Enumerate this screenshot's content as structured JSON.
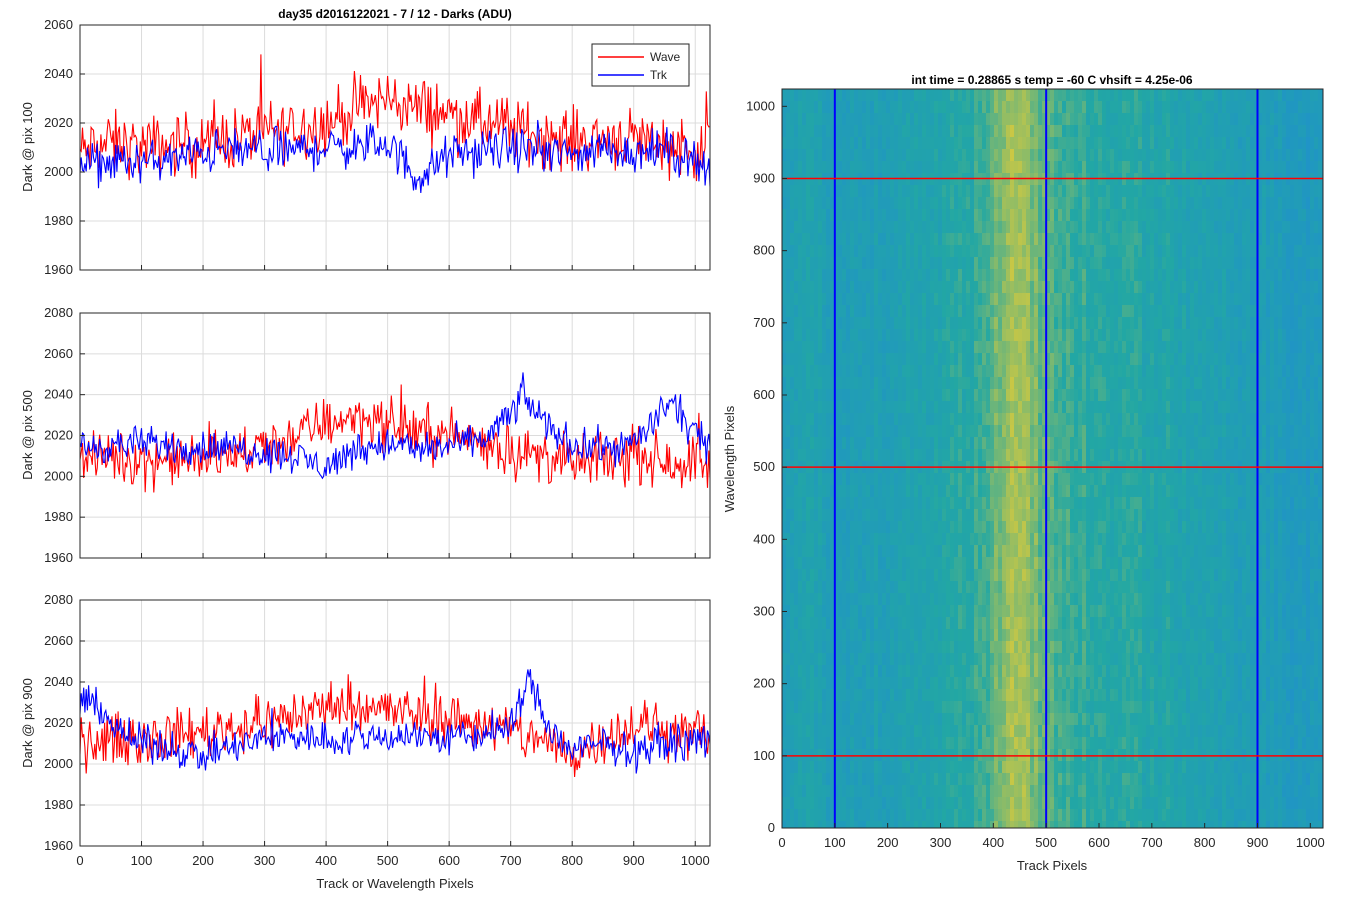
{
  "figure": {
    "title": "day35 d2016122021 - 7 / 12 - Darks (ADU)"
  },
  "colors": {
    "wave": "#ff0000",
    "trk": "#0000ff",
    "grid": "#dcdcdc",
    "axis": "#262626",
    "heat_low": "#1f8fcf",
    "heat_mid": "#22a7a4",
    "heat_high": "#dccb3a"
  },
  "chart_data": [
    {
      "type": "line",
      "title": "day35 d2016122021 - 7 / 12 - Darks (ADU)",
      "xlabel": "",
      "ylabel": "Dark @ pix 100",
      "xlim": [
        0,
        1024
      ],
      "ylim": [
        1960,
        2060
      ],
      "xticks": [
        0,
        100,
        200,
        300,
        400,
        500,
        600,
        700,
        800,
        900,
        1000
      ],
      "yticks": [
        1960,
        1980,
        2000,
        2020,
        2040,
        2060
      ],
      "grid": true,
      "legend": "top-right",
      "series": [
        {
          "name": "Wave",
          "color": "#ff0000",
          "x": [
            0,
            50,
            100,
            150,
            200,
            250,
            300,
            350,
            400,
            450,
            500,
            550,
            600,
            650,
            700,
            750,
            800,
            850,
            900,
            950,
            1024
          ],
          "y": [
            2008,
            2012,
            2010,
            2011,
            2012,
            2014,
            2016,
            2018,
            2020,
            2026,
            2030,
            2026,
            2024,
            2020,
            2018,
            2015,
            2013,
            2014,
            2014,
            2012,
            2008
          ],
          "noise": 9
        },
        {
          "name": "Trk",
          "color": "#0000ff",
          "x": [
            0,
            50,
            100,
            150,
            200,
            250,
            300,
            350,
            400,
            450,
            500,
            550,
            600,
            650,
            700,
            750,
            800,
            850,
            900,
            950,
            1024
          ],
          "y": [
            2003,
            2004,
            2004,
            2005,
            2008,
            2009,
            2008,
            2009,
            2010,
            2010,
            2012,
            1997,
            2007,
            2008,
            2010,
            2008,
            2007,
            2010,
            2008,
            2009,
            2003
          ],
          "noise": 6
        }
      ]
    },
    {
      "type": "line",
      "xlabel": "",
      "ylabel": "Dark @ pix 500",
      "xlim": [
        0,
        1024
      ],
      "ylim": [
        1960,
        2080
      ],
      "xticks": [
        0,
        100,
        200,
        300,
        400,
        500,
        600,
        700,
        800,
        900,
        1000
      ],
      "yticks": [
        1960,
        1980,
        2000,
        2020,
        2040,
        2060,
        2080
      ],
      "grid": true,
      "series": [
        {
          "name": "Wave",
          "color": "#ff0000",
          "x": [
            0,
            50,
            100,
            150,
            200,
            250,
            300,
            350,
            400,
            450,
            500,
            550,
            600,
            650,
            700,
            750,
            800,
            850,
            900,
            950,
            1024
          ],
          "y": [
            2008,
            2010,
            2008,
            2008,
            2009,
            2010,
            2014,
            2020,
            2026,
            2030,
            2025,
            2022,
            2020,
            2018,
            2012,
            2010,
            2006,
            2008,
            2010,
            2008,
            2006
          ],
          "noise": 9
        },
        {
          "name": "Trk",
          "color": "#0000ff",
          "x": [
            0,
            50,
            100,
            150,
            200,
            250,
            300,
            350,
            400,
            450,
            500,
            550,
            600,
            650,
            700,
            720,
            750,
            800,
            850,
            900,
            960,
            1024
          ],
          "y": [
            2014,
            2015,
            2016,
            2015,
            2014,
            2014,
            2012,
            2010,
            2004,
            2014,
            2016,
            2013,
            2015,
            2017,
            2030,
            2040,
            2028,
            2015,
            2014,
            2016,
            2036,
            2012
          ],
          "noise": 6
        }
      ]
    },
    {
      "type": "line",
      "xlabel": "Track or Wavelength Pixels",
      "ylabel": "Dark @ pix 900",
      "xlim": [
        0,
        1024
      ],
      "ylim": [
        1960,
        2080
      ],
      "xticks": [
        0,
        100,
        200,
        300,
        400,
        500,
        600,
        700,
        800,
        900,
        1000
      ],
      "yticks": [
        1960,
        1980,
        2000,
        2020,
        2040,
        2060,
        2080
      ],
      "grid": true,
      "series": [
        {
          "name": "Wave",
          "color": "#ff0000",
          "x": [
            0,
            50,
            100,
            150,
            200,
            250,
            300,
            350,
            400,
            450,
            500,
            550,
            600,
            650,
            700,
            750,
            800,
            850,
            900,
            950,
            1024
          ],
          "y": [
            2010,
            2012,
            2012,
            2014,
            2016,
            2018,
            2020,
            2024,
            2028,
            2030,
            2026,
            2024,
            2022,
            2020,
            2016,
            2012,
            2004,
            2014,
            2018,
            2018,
            2014
          ],
          "noise": 9
        },
        {
          "name": "Trk",
          "color": "#0000ff",
          "x": [
            0,
            30,
            60,
            100,
            150,
            200,
            250,
            300,
            350,
            400,
            450,
            500,
            550,
            600,
            650,
            700,
            730,
            760,
            800,
            850,
            900,
            950,
            1024
          ],
          "y": [
            2028,
            2030,
            2016,
            2010,
            2008,
            2004,
            2008,
            2012,
            2014,
            2012,
            2012,
            2014,
            2014,
            2012,
            2014,
            2018,
            2042,
            2018,
            2006,
            2010,
            2006,
            2010,
            2012
          ],
          "noise": 6
        }
      ]
    },
    {
      "type": "heatmap",
      "title": "int time = 0.28865 s    temp = -60 C    vhsift = 4.25e-06",
      "xlabel": "Track Pixels",
      "ylabel": "Wavelength Pixels",
      "xlim": [
        0,
        1024
      ],
      "ylim": [
        0,
        1024
      ],
      "xticks": [
        0,
        100,
        200,
        300,
        400,
        500,
        600,
        700,
        800,
        900,
        1000
      ],
      "yticks": [
        0,
        100,
        200,
        300,
        400,
        500,
        600,
        700,
        800,
        900,
        1000
      ],
      "grid": false,
      "column_profile": {
        "x": [
          0,
          60,
          100,
          200,
          300,
          380,
          420,
          450,
          480,
          520,
          560,
          650,
          750,
          850,
          950,
          1024
        ],
        "level": [
          0.3,
          0.38,
          0.28,
          0.35,
          0.4,
          0.55,
          0.8,
          0.85,
          0.72,
          0.58,
          0.55,
          0.48,
          0.42,
          0.35,
          0.25,
          0.22
        ]
      },
      "vertical_markers": {
        "x": [
          100,
          500,
          900
        ],
        "color": "#0000ff"
      },
      "horizontal_markers": {
        "y": [
          100,
          500,
          900
        ],
        "color": "#ff0000"
      }
    }
  ],
  "legend": {
    "items": [
      "Wave",
      "Trk"
    ]
  }
}
